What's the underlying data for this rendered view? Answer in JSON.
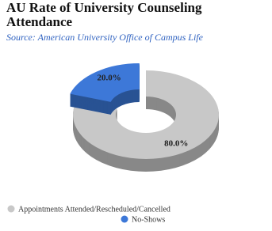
{
  "chart_data": {
    "type": "pie",
    "title": "AU Rate of University Counseling Attendance",
    "subtitle": "Source: American University Office of Campus Life",
    "categories": [
      "Appointments Attended/Rescheduled/Cancelled",
      "No-Shows"
    ],
    "values": [
      80,
      20
    ],
    "value_labels": [
      "80.0%",
      "20.0%"
    ],
    "colors": [
      "#c8c8c8",
      "#3d78d8"
    ]
  }
}
